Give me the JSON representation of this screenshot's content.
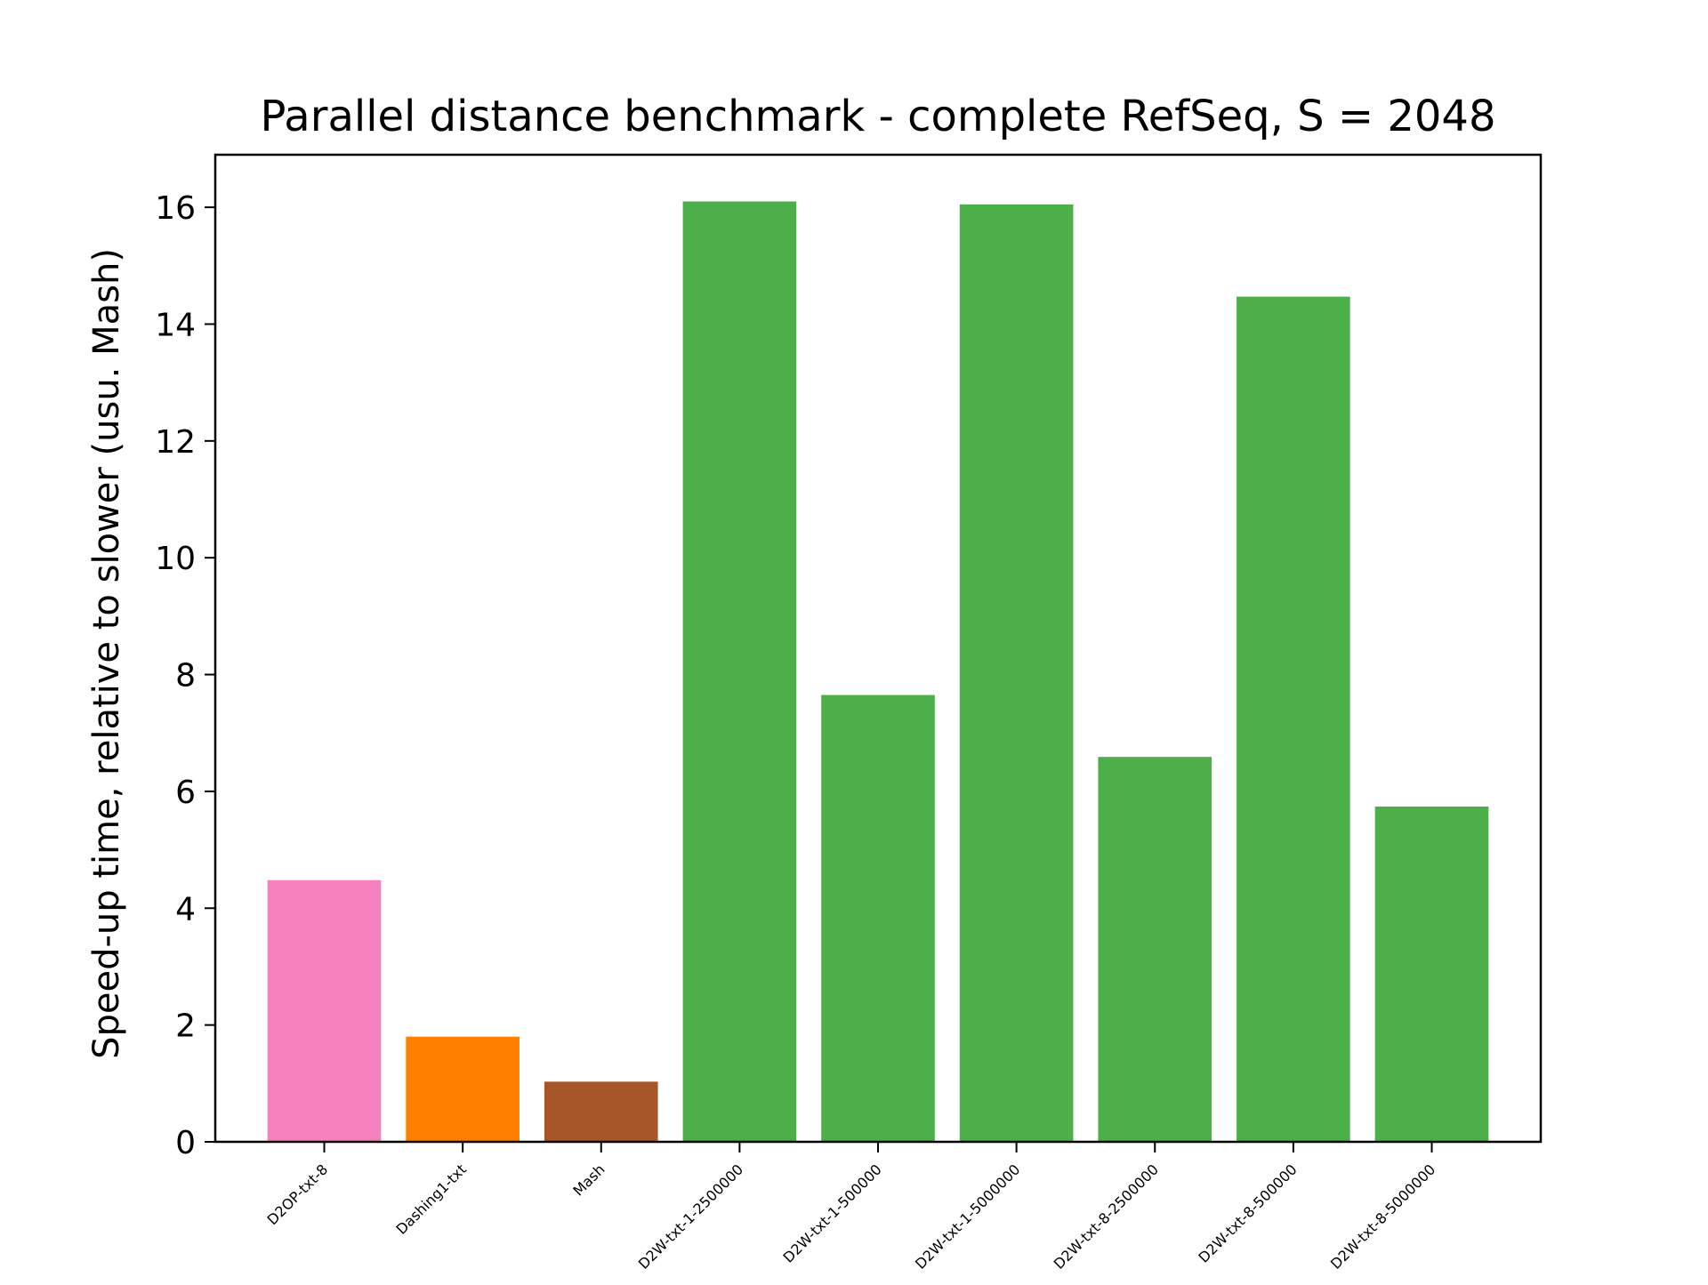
{
  "chart_data": {
    "type": "bar",
    "title": "Parallel distance benchmark - complete RefSeq, S = 2048",
    "xlabel": "",
    "ylabel": "Speed-up time, relative to slower (usu. Mash)",
    "ylim": [
      0,
      16.9
    ],
    "yticks": [
      0,
      2,
      4,
      6,
      8,
      10,
      12,
      14,
      16
    ],
    "grid": false,
    "categories": [
      "D2OP-txt-8",
      "Dashing1-txt",
      "Mash",
      "D2W-txt-1-2500000",
      "D2W-txt-1-500000",
      "D2W-txt-1-5000000",
      "D2W-txt-8-2500000",
      "D2W-txt-8-500000",
      "D2W-txt-8-5000000"
    ],
    "values": [
      4.48,
      1.8,
      1.03,
      16.1,
      7.65,
      16.05,
      6.59,
      14.47,
      5.74
    ],
    "colors": [
      "#f781bf",
      "#ff7f00",
      "#a65628",
      "#4daf4a",
      "#4daf4a",
      "#4daf4a",
      "#4daf4a",
      "#4daf4a",
      "#4daf4a"
    ]
  }
}
